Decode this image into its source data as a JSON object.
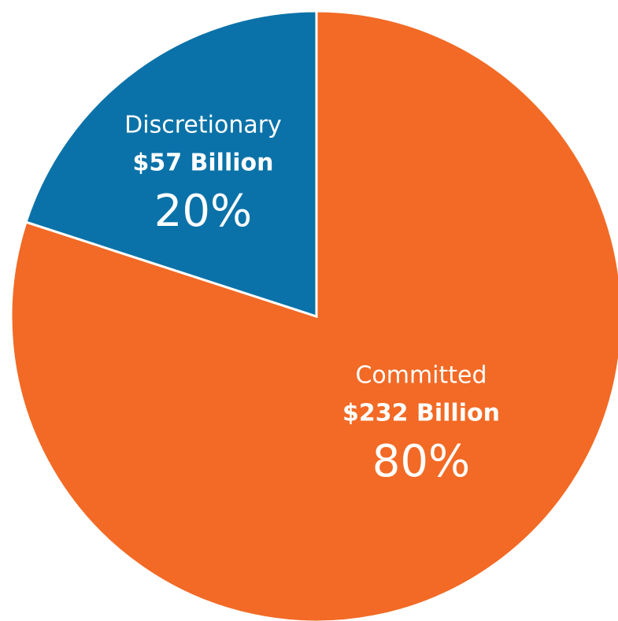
{
  "chart_data": {
    "type": "pie",
    "categories": [
      "Committed",
      "Discretionary"
    ],
    "values": [
      80,
      20
    ],
    "value_labels": [
      "80%",
      "20%"
    ],
    "amount_labels": [
      "$232 Billion",
      "$57 Billion"
    ],
    "colors": [
      "#f26a25",
      "#0a72a8"
    ]
  }
}
